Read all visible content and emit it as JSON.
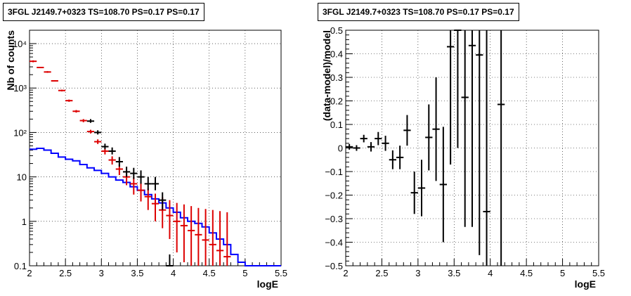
{
  "chart_data": [
    {
      "type": "line",
      "title": "3FGL J2149.7+0323 TS=108.70 PS=0.17 PS=0.17",
      "xlabel": "logE",
      "ylabel": "Nb of counts",
      "log_y": true,
      "grid": true,
      "xlim": [
        2,
        5.5
      ],
      "ylim": [
        0.1,
        20000
      ],
      "x_ticks": [
        "2",
        "2.5",
        "3",
        "3.5",
        "4",
        "4.5",
        "5",
        "5.5"
      ],
      "y_ticks": [
        "0.1",
        "1",
        "10",
        "10²",
        "10³",
        "10⁴"
      ],
      "series": [
        {
          "role": "model-histogram",
          "color": "#0000ff",
          "edges": [
            2.0,
            2.1,
            2.2,
            2.3,
            2.4,
            2.5,
            2.6,
            2.7,
            2.8,
            2.9,
            3.0,
            3.1,
            3.2,
            3.3,
            3.4,
            3.5,
            3.6,
            3.7,
            3.8,
            3.9,
            4.0,
            4.1,
            4.2,
            4.3,
            4.4,
            4.5,
            4.6,
            4.7,
            4.8,
            4.9,
            5.0,
            5.1,
            5.2,
            5.3,
            5.4,
            5.5
          ],
          "values": [
            42,
            44,
            40,
            34,
            28,
            25,
            23,
            19,
            16,
            14,
            12,
            10,
            8.5,
            7.5,
            6,
            5,
            4,
            3.2,
            2.6,
            2.0,
            1.6,
            1.2,
            1.0,
            0.9,
            0.75,
            0.55,
            0.4,
            0.3,
            0.18,
            0.12,
            0.1,
            0.1,
            0.1,
            0.1,
            0.1
          ]
        },
        {
          "role": "model-counts",
          "color": "#dd0000",
          "x": [
            2.05,
            2.15,
            2.25,
            2.35,
            2.45,
            2.55,
            2.65,
            2.75,
            2.85,
            2.95,
            3.05,
            3.15,
            3.25,
            3.35,
            3.45,
            3.55,
            3.65,
            3.75,
            3.85,
            3.95,
            4.05,
            4.15,
            4.25,
            4.35,
            4.45,
            4.55,
            4.65,
            4.75
          ],
          "y": [
            4000,
            2900,
            2300,
            1450,
            880,
            520,
            300,
            185,
            105,
            62,
            38,
            24,
            15,
            10,
            7,
            5,
            3.6,
            2.5,
            1.8,
            1.35,
            1.0,
            0.8,
            0.62,
            0.5,
            0.38,
            0.3,
            0.22,
            0.16
          ],
          "err_low": [
            3800,
            2800,
            2200,
            1400,
            840,
            490,
            280,
            170,
            95,
            55,
            32,
            19,
            11,
            6.5,
            4,
            2.8,
            1.8,
            1.0,
            0.7,
            0.4,
            0.2,
            0.12,
            0.1,
            0.1,
            0.1,
            0.1,
            0.1,
            0.1
          ],
          "err_high": [
            4200,
            3000,
            2400,
            1500,
            920,
            550,
            320,
            200,
            115,
            70,
            44,
            29,
            19,
            13.5,
            10,
            7.5,
            5.5,
            4.2,
            3.5,
            3.0,
            2.6,
            2.4,
            2.2,
            2.0,
            1.9,
            1.8,
            1.7,
            1.6
          ]
        },
        {
          "role": "data-counts",
          "color": "#000000",
          "x": [
            2.85,
            2.95,
            3.05,
            3.15,
            3.25,
            3.35,
            3.45,
            3.55,
            3.65,
            3.75,
            3.85,
            3.95
          ],
          "y": [
            180,
            100,
            48,
            38,
            22,
            13,
            12,
            10,
            7,
            7,
            3,
            0.1
          ],
          "err_low": [
            165,
            90,
            42,
            32,
            17,
            10,
            9,
            7,
            5,
            5,
            1.8,
            0.1
          ],
          "err_high": [
            200,
            112,
            56,
            46,
            28,
            17,
            16,
            14,
            10,
            10,
            4.5,
            0.18
          ]
        }
      ]
    },
    {
      "type": "scatter",
      "title": "3FGL J2149.7+0323 TS=108.70 PS=0.17 PS=0.17",
      "xlabel": "logE",
      "ylabel": "(data-model)/model",
      "grid": true,
      "xlim": [
        2,
        5.5
      ],
      "ylim": [
        -0.5,
        0.5
      ],
      "x_ticks": [
        "2",
        "2.5",
        "3",
        "3.5",
        "4",
        "4.5",
        "5",
        "5.5"
      ],
      "y_ticks": [
        "−0.5",
        "−0.4",
        "−0.3",
        "−0.2",
        "−0.1",
        "0",
        "0.1",
        "0.2",
        "0.3",
        "0.4",
        "0.5"
      ],
      "series": [
        {
          "role": "residuals",
          "color": "#000000",
          "x": [
            2.05,
            2.15,
            2.25,
            2.35,
            2.45,
            2.55,
            2.65,
            2.75,
            2.85,
            2.95,
            3.05,
            3.15,
            3.25,
            3.35,
            3.45,
            3.55,
            3.65,
            3.75,
            3.85,
            3.95,
            4.15
          ],
          "y": [
            0.005,
            0.0,
            0.04,
            0.005,
            0.04,
            0.02,
            -0.05,
            -0.04,
            0.075,
            -0.19,
            -0.17,
            0.045,
            0.08,
            -0.155,
            0.43,
            0.5,
            0.215,
            0.435,
            0.395,
            -0.27,
            0.185
          ],
          "err": [
            0.012,
            0.012,
            0.016,
            0.02,
            0.028,
            0.032,
            0.04,
            0.05,
            0.065,
            0.09,
            0.12,
            0.14,
            0.22,
            0.245,
            0.5,
            0.5,
            0.55,
            0.77,
            0.85,
            0.8,
            1.0
          ],
          "x_err": [
            0.05,
            0.05,
            0.05,
            0.05,
            0.05,
            0.05,
            0.05,
            0.05,
            0.05,
            0.05,
            0.05,
            0.05,
            0.05,
            0.05,
            0.05,
            0.05,
            0.05,
            0.05,
            0.05,
            0.05,
            0.05
          ]
        }
      ]
    }
  ]
}
